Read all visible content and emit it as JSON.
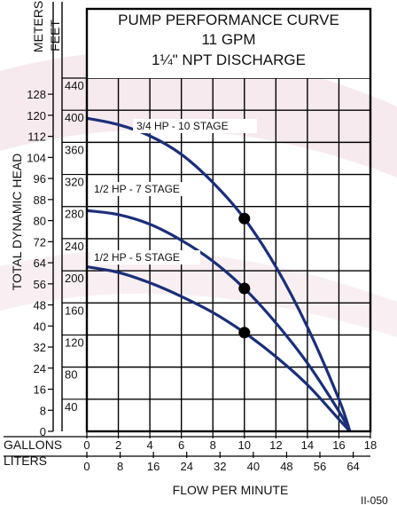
{
  "chart_data": {
    "type": "line",
    "title": [
      "PUMP PERFORMANCE CURVE",
      "11 GPM",
      "1¼\" NPT DISCHARGE"
    ],
    "y_axis_title": "TOTAL DYNAMIC HEAD",
    "x_axis_title": "FLOW PER MINUTE",
    "primary_x_unit": "GALLONS",
    "secondary_x_unit": "LITERS",
    "feet_unit": "FEET",
    "meters_unit": "METERS",
    "xlim": [
      0,
      18
    ],
    "ylim_feet": [
      0,
      440
    ],
    "x_ticks_gallons": [
      0,
      2,
      4,
      6,
      8,
      10,
      12,
      14,
      16,
      18
    ],
    "x_ticks_liters": [
      0,
      8,
      16,
      24,
      32,
      40,
      48,
      56,
      64
    ],
    "y_ticks_feet": [
      40,
      80,
      120,
      160,
      200,
      240,
      280,
      320,
      360,
      400,
      440
    ],
    "y_ticks_meters": [
      0,
      8,
      16,
      24,
      32,
      40,
      48,
      56,
      64,
      72,
      80,
      88,
      96,
      104,
      112,
      120,
      128
    ],
    "grid": true,
    "series": [
      {
        "name": "3/4 HP - 10 STAGE",
        "x": [
          0,
          2,
          4,
          6,
          8,
          10,
          12,
          14,
          16,
          16.7
        ],
        "y": [
          390,
          382,
          368,
          345,
          310,
          265,
          205,
          130,
          40,
          0
        ],
        "marker": {
          "x": 10,
          "y": 265
        }
      },
      {
        "name": "1/2 HP - 7 STAGE",
        "x": [
          0,
          2,
          4,
          6,
          8,
          10,
          12,
          14,
          16,
          16.7
        ],
        "y": [
          275,
          270,
          258,
          238,
          212,
          178,
          135,
          85,
          25,
          0
        ],
        "marker": {
          "x": 10,
          "y": 178
        }
      },
      {
        "name": "1/2 HP - 5 STAGE",
        "x": [
          0,
          2,
          4,
          6,
          8,
          10,
          12,
          14,
          16,
          16.7
        ],
        "y": [
          205,
          198,
          185,
          168,
          148,
          123,
          93,
          58,
          15,
          0
        ],
        "marker": {
          "x": 10,
          "y": 123
        }
      }
    ]
  },
  "figure_code": "II-050",
  "colors": {
    "curve": "#1a2f7a",
    "marker": "#000000",
    "axis": "#000000",
    "background": "#ffffff"
  }
}
